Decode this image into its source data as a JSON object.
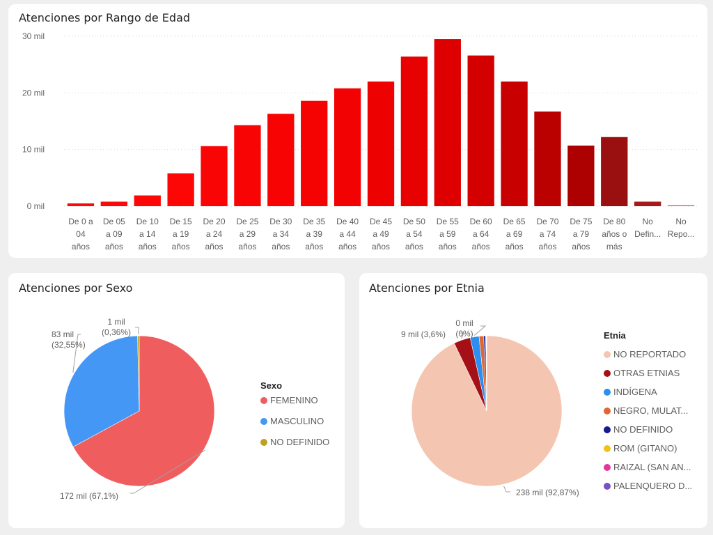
{
  "chart_data": [
    {
      "type": "bar",
      "title": "Atenciones por Rango de Edad",
      "xlabel": "",
      "ylabel": "",
      "ylim": [
        0,
        30000
      ],
      "yticks": [
        "0 mil",
        "10 mil",
        "20 mil",
        "30 mil"
      ],
      "ytick_values": [
        0,
        10000,
        20000,
        30000
      ],
      "grid": true,
      "categories": [
        [
          "De 0 a",
          "04",
          "años"
        ],
        [
          "De 05",
          "a 09",
          "años"
        ],
        [
          "De 10",
          "a 14",
          "años"
        ],
        [
          "De 15",
          "a 19",
          "años"
        ],
        [
          "De 20",
          "a 24",
          "años"
        ],
        [
          "De 25",
          "a 29",
          "años"
        ],
        [
          "De 30",
          "a 34",
          "años"
        ],
        [
          "De 35",
          "a 39",
          "años"
        ],
        [
          "De 40",
          "a 44",
          "años"
        ],
        [
          "De 45",
          "a 49",
          "años"
        ],
        [
          "De 50",
          "a 54",
          "años"
        ],
        [
          "De 55",
          "a 59",
          "años"
        ],
        [
          "De 60",
          "a 64",
          "años"
        ],
        [
          "De 65",
          "a 69",
          "años"
        ],
        [
          "De 70",
          "a 74",
          "años"
        ],
        [
          "De 75",
          "a 79",
          "años"
        ],
        [
          "De 80",
          "años o",
          "más"
        ],
        [
          "No",
          "Defin..."
        ],
        [
          "No",
          "Repo..."
        ]
      ],
      "values": [
        500,
        800,
        1900,
        5800,
        10600,
        14300,
        16300,
        18600,
        20800,
        22000,
        26400,
        29500,
        26600,
        22000,
        16700,
        10700,
        12200,
        800,
        200
      ],
      "colors": [
        "#fc0808",
        "#fc0808",
        "#fc0707",
        "#fc0606",
        "#fa0505",
        "#f90404",
        "#f70303",
        "#f50202",
        "#f20202",
        "#ee0101",
        "#e70101",
        "#de0000",
        "#d40000",
        "#c80000",
        "#bb0000",
        "#ad0000",
        "#9a1010",
        "#a81a1a",
        "#d77a7a"
      ]
    },
    {
      "type": "pie",
      "title": "Atenciones por Sexo",
      "legend_title": "Sexo",
      "legend_position": "right",
      "categories": [
        "FEMENINO",
        "MASCULINO",
        "NO DEFINIDO"
      ],
      "values": [
        67.1,
        32.55,
        0.36
      ],
      "colors": [
        "#f05d5e",
        "#4597f6",
        "#bca21f"
      ],
      "labels": [
        {
          "lines": [
            "172 mil (67,1%)"
          ]
        },
        {
          "lines": [
            "83 mil",
            "(32,55%)"
          ]
        },
        {
          "lines": [
            "1 mil",
            "(0,36%)"
          ]
        }
      ]
    },
    {
      "type": "pie",
      "title": "Atenciones por Etnia",
      "legend_title": "Etnia",
      "legend_position": "right",
      "categories": [
        "NO REPORTADO",
        "OTRAS ETNIAS",
        "INDÍGENA",
        "NEGRO, MULAT...",
        "NO DEFINIDO",
        "ROM (GITANO)",
        "RAIZAL (SAN AN...",
        "PALENQUERO D..."
      ],
      "values": [
        92.87,
        3.6,
        1.9,
        1.0,
        0.4,
        0.1,
        0.08,
        0.05
      ],
      "colors": [
        "#f4c6b1",
        "#a51016",
        "#2a8ff0",
        "#e06732",
        "#16198f",
        "#f2c313",
        "#e1389b",
        "#7a4fc6"
      ],
      "labels": [
        {
          "lines": [
            "238 mil (92,87%)"
          ]
        },
        {
          "lines": [
            "9 mil (3,6%)"
          ]
        },
        {
          "lines": [
            "0 mil",
            "(0%)"
          ]
        }
      ]
    }
  ]
}
